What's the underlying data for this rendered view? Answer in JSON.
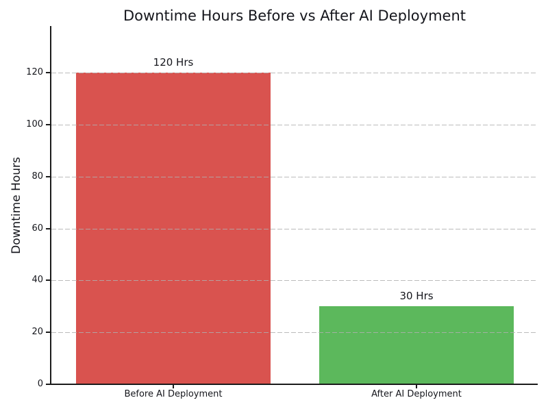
{
  "chart_data": {
    "type": "bar",
    "title": "Downtime Hours Before vs After AI Deployment",
    "xlabel": "",
    "ylabel": "Downtime Hours",
    "categories": [
      "Before AI Deployment",
      "After AI Deployment"
    ],
    "values": [
      120,
      30
    ],
    "bar_labels": [
      "120 Hrs",
      "30 Hrs"
    ],
    "bar_colors": [
      "#d9534f",
      "#5cb85c"
    ],
    "yticks": [
      0,
      20,
      40,
      60,
      80,
      100,
      120
    ],
    "ylim": [
      0,
      138
    ],
    "grid": "horizontal dashed",
    "grid_above_bars": true,
    "legend_position": "none",
    "colors": {
      "before_bar": "#d9534f",
      "after_bar": "#5cb85c",
      "grid": "#c4c4c4",
      "text": "#15161c",
      "spine": "#1a1a1a",
      "background": "#ffffff"
    }
  }
}
